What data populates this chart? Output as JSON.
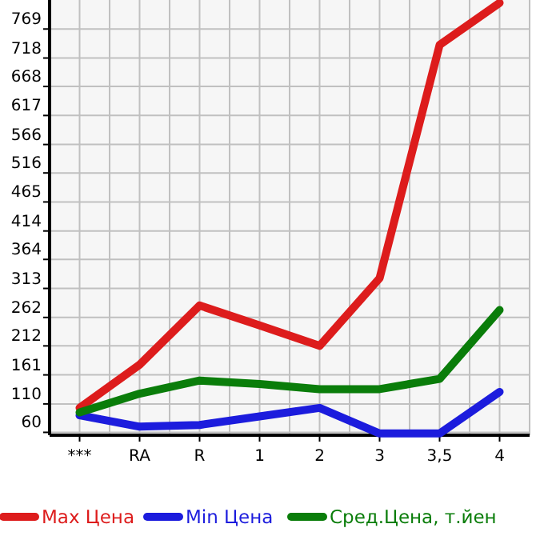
{
  "chart_data": {
    "type": "line",
    "categories": [
      "***",
      "RA",
      "R",
      "1",
      "2",
      "3",
      "3,5",
      "4"
    ],
    "ylim": [
      55,
      820
    ],
    "yticks": [
      60,
      110,
      161,
      212,
      262,
      313,
      364,
      414,
      465,
      516,
      566,
      617,
      668,
      718,
      769
    ],
    "grid": true,
    "legend": "bottom",
    "marker": "none",
    "line_style": "solid",
    "series": [
      {
        "name": "Max Цена",
        "color": "#dd1c1c",
        "values": [
          103,
          179,
          283,
          248,
          212,
          331,
          741,
          815
        ]
      },
      {
        "name": "Min Цена",
        "color": "#1c1cdd",
        "values": [
          90,
          70,
          73,
          88,
          103,
          58,
          58,
          131
        ]
      },
      {
        "name": "Сред.Цена, т.йен",
        "color": "#0a7d0a",
        "values": [
          95,
          128,
          151,
          145,
          136,
          136,
          154,
          275
        ]
      }
    ]
  }
}
